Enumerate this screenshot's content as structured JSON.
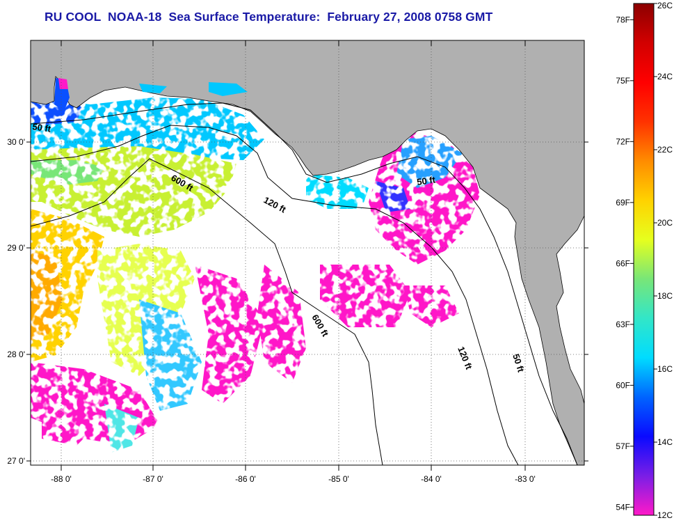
{
  "title": "RU COOL  NOAA-18  Sea Surface Temperature:  February 27, 2008 0758 GMT",
  "map": {
    "longitude_labels": [
      "-88 0'",
      "-87 0'",
      "-86 0'",
      "-85 0'",
      "-84 0'",
      "-83 0'"
    ],
    "latitude_labels": [
      "30 0'",
      "29 0'",
      "28 0'",
      "27 0'"
    ],
    "longitude_range": [
      -88.3,
      -82.4
    ],
    "latitude_range": [
      26.95,
      30.95
    ],
    "contour_labels": [
      "50 ft",
      "600 ft",
      "120 ft",
      "50 ft",
      "600 ft",
      "120 ft",
      "50 ft"
    ],
    "colors": {
      "land": "#b0b0b0",
      "cloud_or_missing": "#ffffff",
      "title": "#1a1aa6"
    }
  },
  "colorbar": {
    "fahrenheit_labels": [
      "78F",
      "75F",
      "72F",
      "69F",
      "66F",
      "63F",
      "60F",
      "57F",
      "54F"
    ],
    "celsius_labels": [
      "26C",
      "24C",
      "22C",
      "20C",
      "18C",
      "16C",
      "14C",
      "12C"
    ],
    "range_celsius": [
      12,
      26
    ],
    "colors": [
      "#ff19c8",
      "#7a1ee6",
      "#0a0aff",
      "#0064ff",
      "#00dcff",
      "#32e6c8",
      "#78e678",
      "#e6ff1e",
      "#ffd200",
      "#ff8c00",
      "#ff3200",
      "#ff0000",
      "#d20000",
      "#8c0000"
    ]
  }
}
